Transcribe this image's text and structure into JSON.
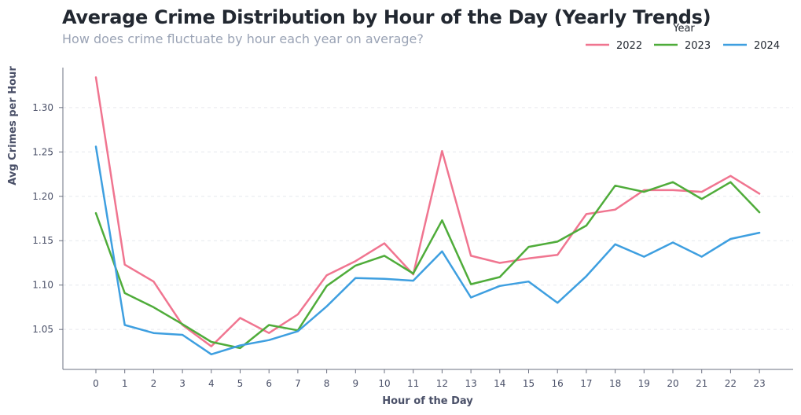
{
  "chart_data": {
    "type": "line",
    "title": "Average Crime Distribution by Hour of the Day (Yearly Trends)",
    "subtitle": "How does crime fluctuate by hour each year on average?",
    "xlabel": "Hour of the Day",
    "ylabel": "Avg Crimes per Hour",
    "legend_title": "Year",
    "legend_placement": "top-right",
    "grid": "horizontal dashed",
    "x": [
      "0",
      "1",
      "2",
      "3",
      "4",
      "5",
      "6",
      "7",
      "8",
      "9",
      "10",
      "11",
      "12",
      "13",
      "14",
      "15",
      "16",
      "17",
      "18",
      "19",
      "20",
      "21",
      "22",
      "23"
    ],
    "ylim": [
      1.005,
      1.345
    ],
    "yticks": [
      1.05,
      1.1,
      1.15,
      1.2,
      1.25,
      1.3
    ],
    "ytick_labels": [
      "1.05",
      "1.10",
      "1.15",
      "1.20",
      "1.25",
      "1.30"
    ],
    "series": [
      {
        "name": "2022",
        "color": "#f07590",
        "values": [
          1.334,
          1.123,
          1.104,
          1.055,
          1.031,
          1.063,
          1.046,
          1.067,
          1.111,
          1.127,
          1.147,
          1.112,
          1.251,
          1.133,
          1.125,
          1.13,
          1.134,
          1.18,
          1.185,
          1.207,
          1.207,
          1.205,
          1.223,
          1.203
        ]
      },
      {
        "name": "2023",
        "color": "#4fac3a",
        "values": [
          1.181,
          1.091,
          1.075,
          1.056,
          1.036,
          1.029,
          1.055,
          1.049,
          1.099,
          1.122,
          1.133,
          1.113,
          1.173,
          1.101,
          1.109,
          1.143,
          1.149,
          1.167,
          1.212,
          1.205,
          1.216,
          1.197,
          1.216,
          1.182
        ]
      },
      {
        "name": "2024",
        "color": "#3e9fe0",
        "values": [
          1.256,
          1.055,
          1.046,
          1.044,
          1.022,
          1.032,
          1.038,
          1.048,
          1.076,
          1.108,
          1.107,
          1.105,
          1.138,
          1.086,
          1.099,
          1.104,
          1.08,
          1.11,
          1.146,
          1.132,
          1.148,
          1.132,
          1.152,
          1.159
        ]
      }
    ]
  }
}
